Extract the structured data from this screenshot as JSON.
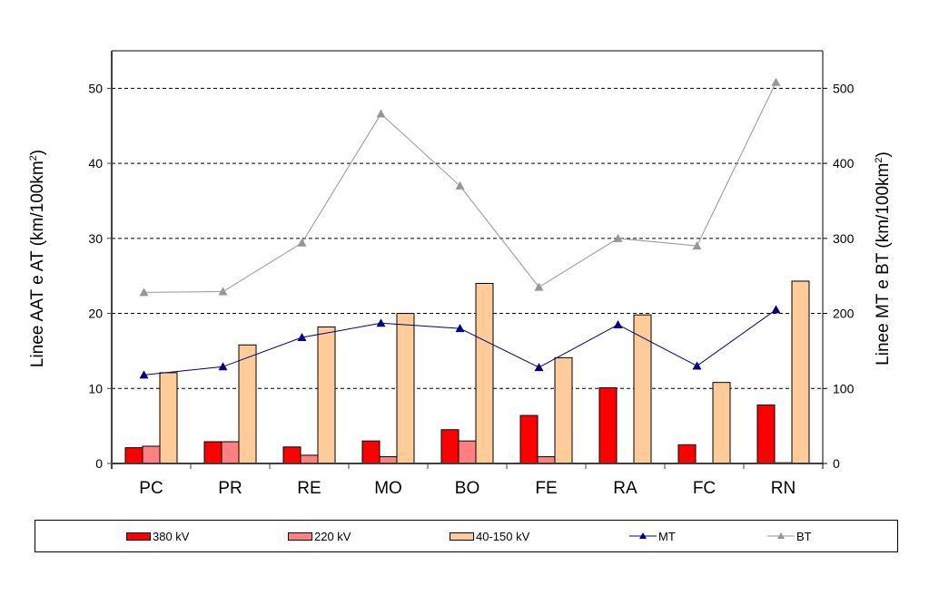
{
  "chart_data": {
    "type": "bar",
    "title": "",
    "categories": [
      "PC",
      "PR",
      "RE",
      "MO",
      "BO",
      "FE",
      "RA",
      "FC",
      "RN"
    ],
    "ylabel_left": "Linee AAT e AT (km/100km²)",
    "ylabel_left_main": "Linee AAT e AT (km/100km",
    "ylabel_right_main": "Linee MT e BT (km/100km",
    "ylabel_sup": "2",
    "ylabel_close": ")",
    "ylabel_right": "Linee MT e BT (km/100km²)",
    "ylim_left": [
      0,
      55
    ],
    "ylim_right": [
      0,
      550
    ],
    "yticks_left": [
      0,
      10,
      20,
      30,
      40,
      50
    ],
    "yticks_right": [
      0,
      100,
      200,
      300,
      400,
      500
    ],
    "grid": true,
    "legend_position": "bottom",
    "bar_series": [
      {
        "name": "380 kV",
        "color": "#ff0000",
        "axis": "left",
        "values": [
          2.1,
          2.9,
          2.2,
          3.0,
          4.5,
          6.4,
          10.1,
          2.5,
          7.8
        ]
      },
      {
        "name": "220 kV",
        "color": "#ff8080",
        "axis": "left",
        "values": [
          2.3,
          2.9,
          1.1,
          0.9,
          3.0,
          0.9,
          0,
          0,
          0.1
        ]
      },
      {
        "name": "40-150 kV",
        "color": "#ffcc99",
        "axis": "left",
        "values": [
          12.1,
          15.8,
          18.2,
          20.0,
          24.0,
          14.1,
          19.8,
          10.8,
          24.3
        ]
      }
    ],
    "line_series": [
      {
        "name": "MT",
        "color": "#000080",
        "axis": "right",
        "marker": "triangle",
        "values": [
          118,
          129,
          168,
          187,
          180,
          128,
          185,
          130,
          205
        ]
      },
      {
        "name": "BT",
        "color": "#969696",
        "axis": "right",
        "marker": "triangle",
        "values": [
          228,
          229,
          294,
          466,
          370,
          235,
          300,
          290,
          508
        ]
      }
    ]
  },
  "legend": {
    "items": [
      {
        "label": "380 kV",
        "kind": "bar",
        "color": "#ff0000"
      },
      {
        "label": "220 kV",
        "kind": "bar",
        "color": "#ff8080"
      },
      {
        "label": "40-150 kV",
        "kind": "bar",
        "color": "#ffcc99"
      },
      {
        "label": "MT",
        "kind": "line",
        "color": "#000080"
      },
      {
        "label": "BT",
        "kind": "line",
        "color": "#969696"
      }
    ]
  }
}
